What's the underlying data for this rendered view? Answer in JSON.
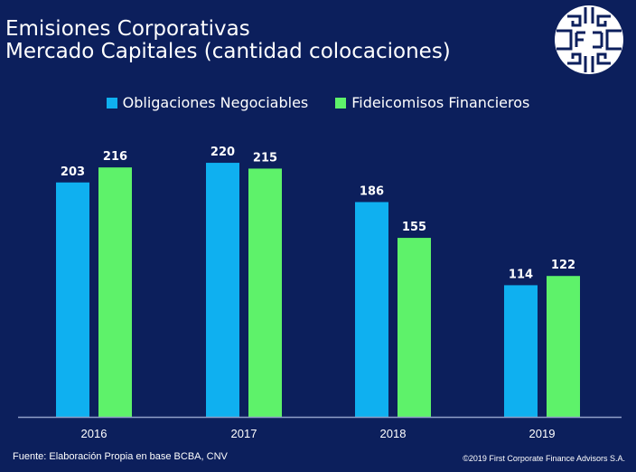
{
  "title": {
    "line1": "Emisiones Corporativas",
    "line2": "Mercado Capitales (cantidad colocaciones)"
  },
  "logo": {
    "icon": "fcfa-emblem-icon"
  },
  "legend": [
    {
      "label": "Obligaciones Negociables",
      "color": "#0fb0f0"
    },
    {
      "label": "Fideicomisos Financieros",
      "color": "#5ef26a"
    }
  ],
  "footer": {
    "source": "Fuente: Elaboración Propia en base BCBA, CNV",
    "copyright": "©2019 First Corporate Finance Advisors S.A."
  },
  "chart_data": {
    "type": "bar",
    "title": "Emisiones Corporativas Mercado Capitales (cantidad colocaciones)",
    "xlabel": "",
    "ylabel": "",
    "categories": [
      "2016",
      "2017",
      "2018",
      "2019"
    ],
    "series": [
      {
        "name": "Obligaciones Negociables",
        "color": "#0fb0f0",
        "values": [
          203,
          220,
          186,
          114
        ]
      },
      {
        "name": "Fideicomisos Financieros",
        "color": "#5ef26a",
        "values": [
          216,
          215,
          155,
          122
        ]
      }
    ],
    "ylim": [
      0,
      220
    ],
    "grid": false,
    "legend_position": "top-center",
    "data_labels": true
  }
}
